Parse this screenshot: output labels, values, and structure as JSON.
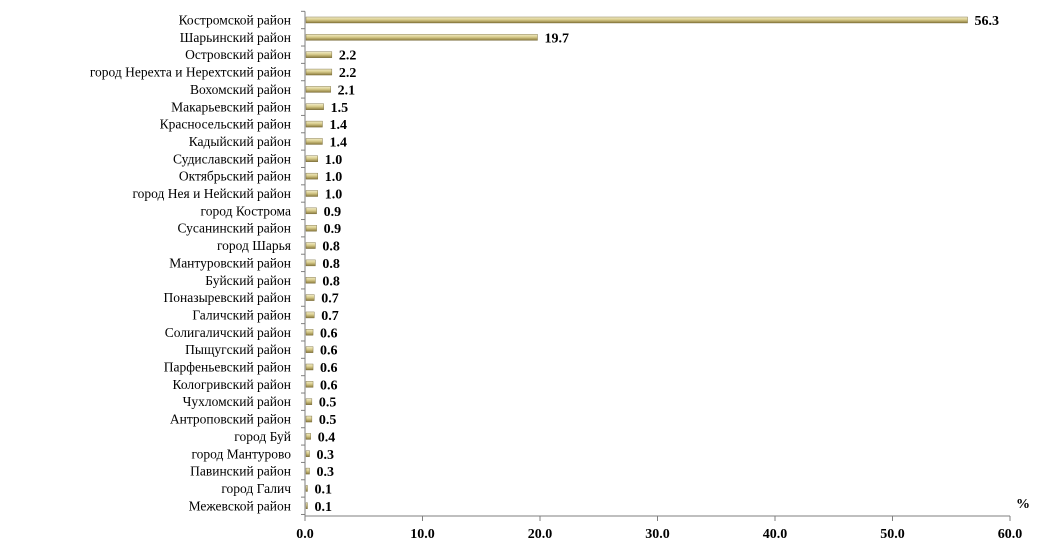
{
  "chart_data": {
    "type": "bar",
    "orientation": "horizontal",
    "categories": [
      "Костромской район",
      "Шарьинский район",
      "Островский район",
      "город Нерехта и Нерехтский район",
      "Вохомский район",
      "Макарьевский район",
      "Красносельский район",
      "Кадыйский район",
      "Судиславский район",
      "Октябрьский район",
      "город Нея и Нейский район",
      "город Кострома",
      "Сусанинский район",
      "город Шарья",
      "Мантуровский район",
      "Буйский район",
      "Поназыревский район",
      "Галичский район",
      "Солигаличский район",
      "Пыщугский район",
      "Парфеньевский район",
      "Кологривский район",
      "Чухломский район",
      "Антроповский район",
      "город Буй",
      "город Мантурово",
      "Павинский район",
      "город Галич",
      "Межевской район"
    ],
    "values": [
      56.3,
      19.7,
      2.2,
      2.2,
      2.1,
      1.5,
      1.4,
      1.4,
      1.0,
      1.0,
      1.0,
      0.9,
      0.9,
      0.8,
      0.8,
      0.8,
      0.7,
      0.7,
      0.6,
      0.6,
      0.6,
      0.6,
      0.5,
      0.5,
      0.4,
      0.3,
      0.3,
      0.1,
      0.1
    ],
    "value_labels": [
      "56.3",
      "19.7",
      "2.2",
      "2.2",
      "2.1",
      "1.5",
      "1.4",
      "1.4",
      "1.0",
      "1.0",
      "1.0",
      "0.9",
      "0.9",
      "0.8",
      "0.8",
      "0.8",
      "0.7",
      "0.7",
      "0.6",
      "0.6",
      "0.6",
      "0.6",
      "0.5",
      "0.5",
      "0.4",
      "0.3",
      "0.3",
      "0.1",
      "0.1"
    ],
    "xlim": [
      0,
      60
    ],
    "x_ticks": [
      0,
      10,
      20,
      30,
      40,
      50,
      60
    ],
    "x_tick_labels": [
      "0.0",
      "10.0",
      "20.0",
      "30.0",
      "40.0",
      "50.0",
      "60.0"
    ],
    "unit": "%",
    "title": "",
    "xlabel": "",
    "ylabel": "",
    "grid": false,
    "legend": "none",
    "bar_color_light": "#f2ecc8",
    "bar_color_dark": "#8a7a3c"
  }
}
